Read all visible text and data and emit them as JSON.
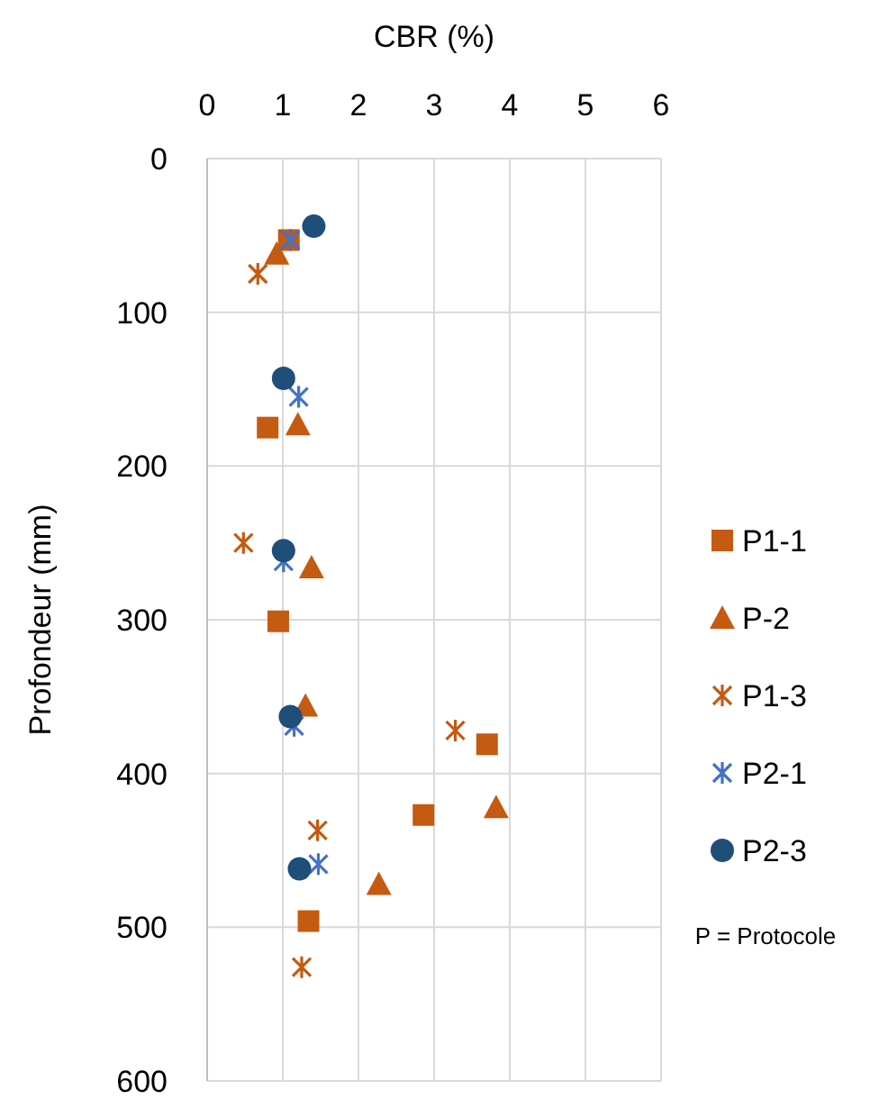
{
  "chart_data": {
    "type": "scatter",
    "xlabel": "CBR (%)",
    "ylabel": "Profondeur (mm)",
    "xlim": [
      0,
      6
    ],
    "xticks": [
      0,
      1,
      2,
      3,
      4,
      5,
      6
    ],
    "ylim": [
      600,
      0
    ],
    "yticks": [
      0,
      100,
      200,
      300,
      400,
      500,
      600
    ],
    "grid": true,
    "legend": "right",
    "annotations": [
      "P = Protocole"
    ],
    "series": [
      {
        "name": "P1-1",
        "color": "#c55a11",
        "marker": "square",
        "x": [
          1.08,
          0.8,
          0.94,
          3.7,
          2.86,
          1.34
        ],
        "values": [
          53,
          175,
          301,
          381,
          427,
          496
        ]
      },
      {
        "name": "P-2",
        "color": "#c55a11",
        "marker": "triangle",
        "x": [
          0.92,
          1.2,
          1.38,
          1.3,
          3.82,
          2.27
        ],
        "values": [
          62,
          173,
          266,
          356,
          422,
          472
        ]
      },
      {
        "name": "P1-3",
        "color": "#c55a11",
        "marker": "cross",
        "x": [
          0.67,
          0.48,
          3.28,
          1.46,
          1.25
        ],
        "values": [
          75,
          250,
          372,
          437,
          526
        ]
      },
      {
        "name": "P2-1",
        "color": "#4472c4",
        "marker": "cross",
        "x": [
          1.1,
          1.21,
          1.01,
          1.15,
          1.47
        ],
        "values": [
          53,
          155,
          262,
          369,
          459
        ]
      },
      {
        "name": "P2-3",
        "color": "#1f4e79",
        "marker": "circle",
        "x": [
          1.41,
          1.01,
          1.01,
          1.1,
          1.22
        ],
        "values": [
          44,
          143,
          255,
          363,
          462
        ]
      }
    ]
  }
}
